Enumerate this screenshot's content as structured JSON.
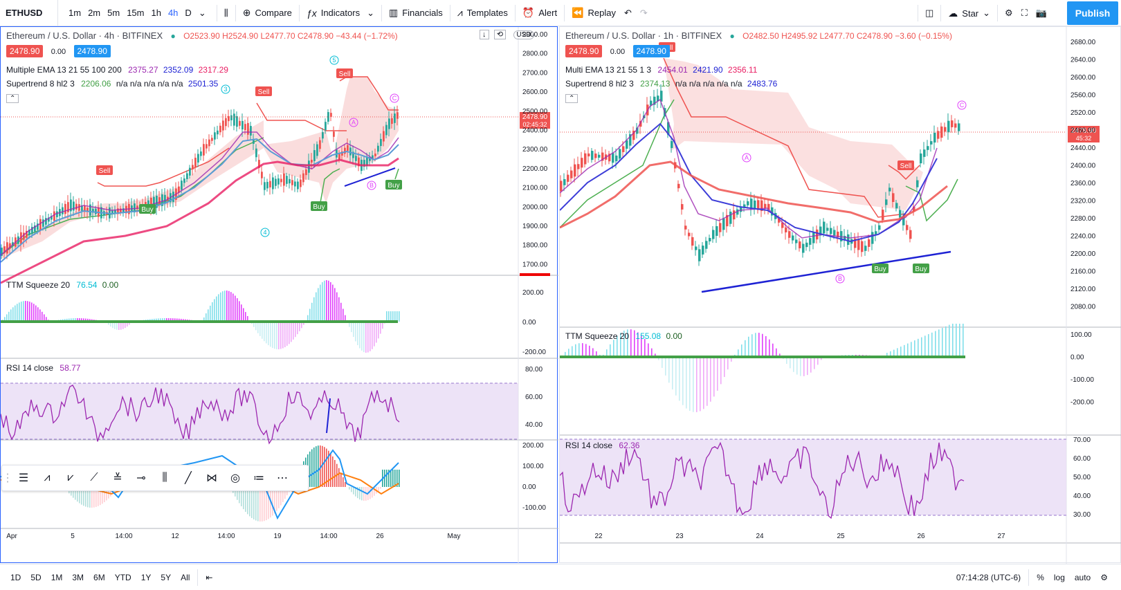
{
  "toolbar": {
    "symbol": "ETHUSD",
    "timeframes": [
      "1m",
      "2m",
      "5m",
      "15m",
      "1h",
      "4h",
      "D"
    ],
    "active_timeframe": "4h",
    "compare": "Compare",
    "indicators": "Indicators",
    "financials": "Financials",
    "templates": "Templates",
    "alert": "Alert",
    "replay": "Replay",
    "star": "Star",
    "publish": "Publish"
  },
  "left": {
    "title": "Ethereum / U.S. Dollar · 4h · BITFINEX",
    "ohlc": "O2523.90 H2524.90 L2477.70 C2478.90 −43.44 (−1.72%)",
    "bid": "2478.90",
    "spread": "0.00",
    "ask": "2478.90",
    "currency": "USD",
    "ema_label": "Multiple EMA 13 21 55 100 200",
    "ema_v1": "2375.27",
    "ema_v2": "2352.09",
    "ema_v3": "2317.29",
    "st_label": "Supertrend 8 hl2 3",
    "st_v1": "2206.06",
    "st_na": "n/a n/a n/a n/a n/a",
    "st_v2": "2501.35",
    "ttm_label": "TTM Squeeze 20",
    "ttm_v1": "76.54",
    "ttm_v2": "0.00",
    "rsi_label": "RSI 14 close",
    "rsi_v": "58.77",
    "price_tag": "2478.90",
    "price_time": "02:45:32",
    "price_ticks": [
      "2900.00",
      "2800.00",
      "2700.00",
      "2600.00",
      "2500.00",
      "2400.00",
      "2300.00",
      "2200.00",
      "2100.00",
      "2000.00",
      "1900.00",
      "1800.00",
      "1700.00"
    ],
    "ttm_ticks": [
      "200.00",
      "0.00",
      "-200.00"
    ],
    "rsi_ticks": [
      "80.00",
      "60.00",
      "40.00"
    ],
    "osc_ticks": [
      "200.00",
      "100.00",
      "0.00",
      "-100.00"
    ],
    "time_ticks": [
      "Apr",
      "5",
      "14:00",
      "12",
      "14:00",
      "19",
      "14:00",
      "26",
      "May"
    ]
  },
  "right": {
    "title": "Ethereum / U.S. Dollar · 1h · BITFINEX",
    "ohlc": "O2482.50 H2495.92 L2477.70 C2478.90 −3.60 (−0.15%)",
    "bid": "2478.90",
    "spread": "0.00",
    "ask": "2478.90",
    "ema_label": "Multi EMA 13 21 55 1 3",
    "ema_v1": "2454.01",
    "ema_v2": "2421.90",
    "ema_v3": "2356.11",
    "st_label": "Supertrend 8 hl2 3",
    "st_v1": "2374.13",
    "st_na": "n/a n/a n/a n/a n/a",
    "st_v2": "2483.76",
    "ttm_label": "TTM Squeeze 20",
    "ttm_v1": "155.08",
    "ttm_v2": "0.00",
    "rsi_label": "RSI 14 close",
    "rsi_v": "62.36",
    "price_tag": "2478.90",
    "price_time": "45:32",
    "price_ticks": [
      "2680.00",
      "2640.00",
      "2600.00",
      "2560.00",
      "2520.00",
      "2480.00",
      "2440.00",
      "2400.00",
      "2360.00",
      "2320.00",
      "2280.00",
      "2240.00",
      "2200.00",
      "2160.00",
      "2120.00",
      "2080.00"
    ],
    "ttm_ticks": [
      "100.00",
      "0.00",
      "-100.00",
      "-200.00"
    ],
    "rsi_ticks": [
      "70.00",
      "60.00",
      "50.00",
      "40.00",
      "30.00"
    ],
    "time_ticks": [
      "22",
      "23",
      "24",
      "25",
      "26",
      "27"
    ]
  },
  "signals": {
    "buy": "Buy",
    "sell": "Sell"
  },
  "waves": {
    "w1": "5",
    "w2": "3",
    "w3": "4",
    "a": "A",
    "b": "B",
    "c": "C"
  },
  "bottom": {
    "ranges": [
      "1D",
      "5D",
      "1M",
      "3M",
      "6M",
      "YTD",
      "1Y",
      "5Y",
      "All"
    ],
    "clock": "07:14:28 (UTC-6)",
    "pct": "%",
    "log": "log",
    "auto": "auto"
  }
}
